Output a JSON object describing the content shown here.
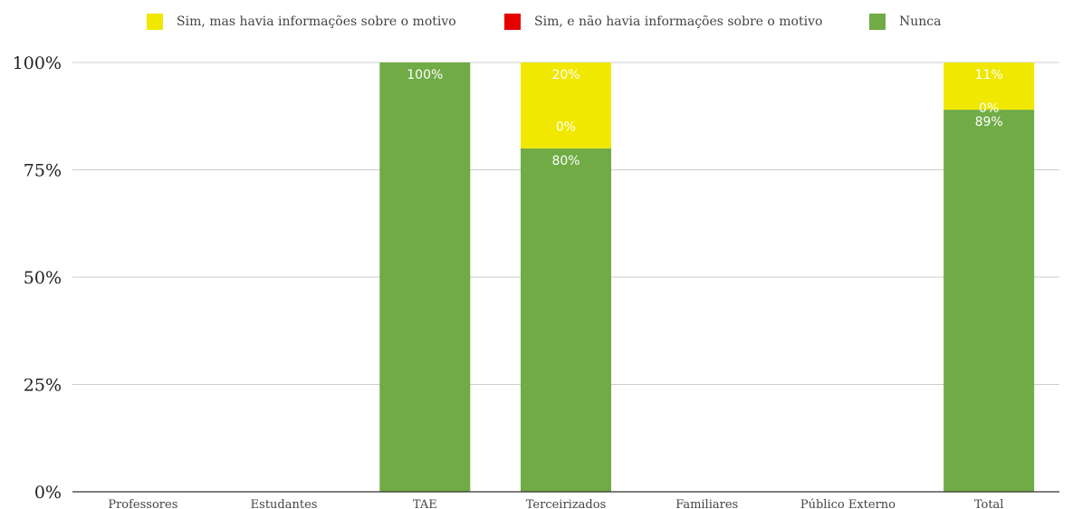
{
  "chart_data": {
    "type": "bar",
    "stacked": true,
    "title": "",
    "xlabel": "",
    "ylabel": "",
    "ylim": [
      0,
      100
    ],
    "y_ticks": [
      "0%",
      "25%",
      "50%",
      "75%",
      "100%"
    ],
    "y_tick_values": [
      0,
      25,
      50,
      75,
      100
    ],
    "grid": true,
    "legend_position": "top-center",
    "categories": [
      "Professores",
      "Estudantes",
      "TAE",
      "Terceirizados",
      "Familiares",
      "Público Externo",
      "Total"
    ],
    "series": [
      {
        "name": "Nunca",
        "color": "#70ab45",
        "values": [
          null,
          null,
          100,
          80,
          null,
          null,
          89
        ],
        "labels": [
          null,
          null,
          "100%",
          "80%",
          null,
          null,
          "89%"
        ]
      },
      {
        "name": "Sim, e não havia informações sobre o motivo",
        "color": "#e60000",
        "values": [
          null,
          null,
          null,
          0,
          null,
          null,
          0
        ],
        "labels": [
          null,
          null,
          null,
          "0%",
          null,
          null,
          "0%"
        ]
      },
      {
        "name": "Sim, mas havia informações sobre o motivo",
        "color": "#f0e800",
        "values": [
          null,
          null,
          null,
          20,
          null,
          null,
          11
        ],
        "labels": [
          null,
          null,
          null,
          "20%",
          null,
          null,
          "11%"
        ]
      }
    ],
    "legend_order": [
      "Sim, mas havia informações sobre o motivo",
      "Sim, e não havia informações sobre o motivo",
      "Nunca"
    ]
  }
}
